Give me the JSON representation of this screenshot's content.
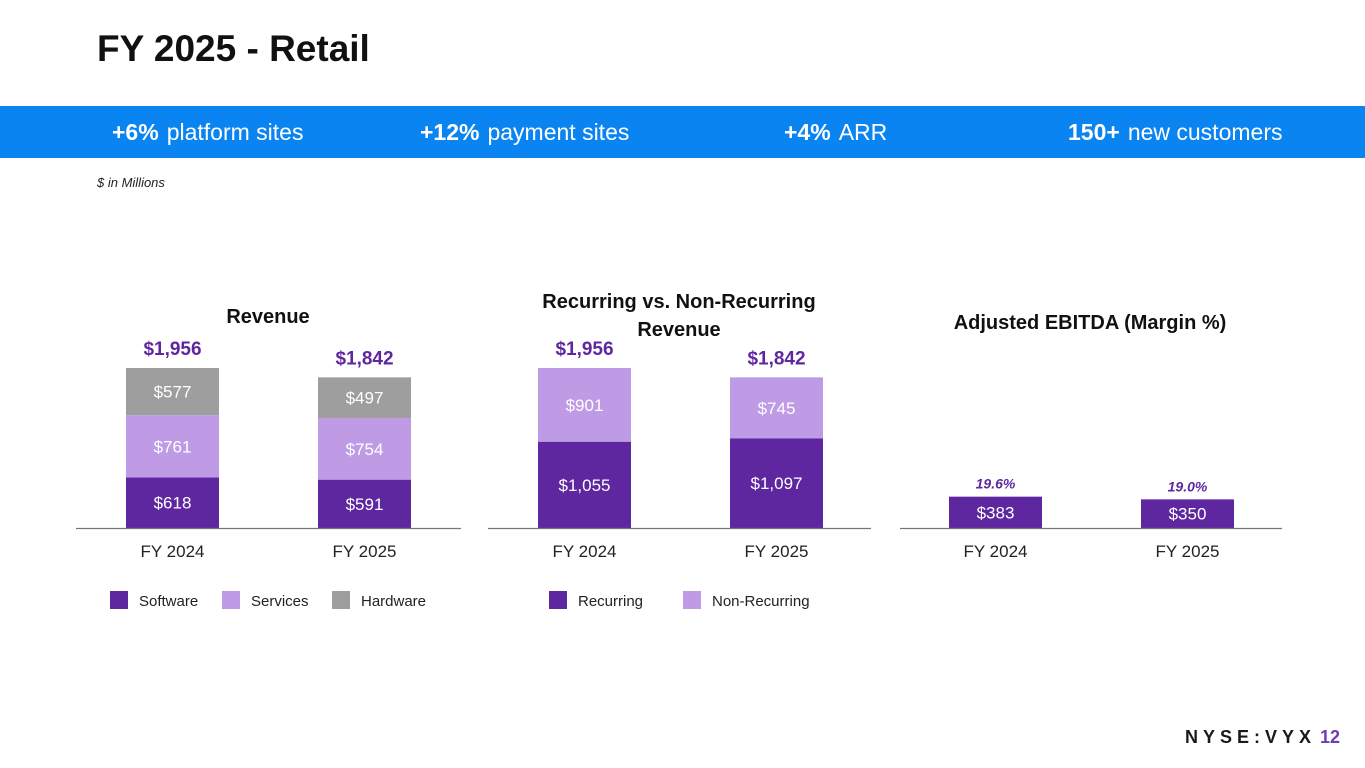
{
  "slide": {
    "title": "FY 2025 - Retail",
    "unit_note": "$ in Millions",
    "page_number": "12",
    "logo_text": "NYSE:VYX"
  },
  "banner": {
    "items": [
      {
        "value": "+6%",
        "label": "platform sites"
      },
      {
        "value": "+12%",
        "label": "payment sites"
      },
      {
        "value": "+4%",
        "label": "ARR"
      },
      {
        "value": "150+",
        "label": "new customers"
      }
    ]
  },
  "colors": {
    "banner": "#0a84f0",
    "dark_purple": "#5e27a0",
    "light_purple": "#bf9be6",
    "gray": "#9e9e9e",
    "total_label": "#5e27a0"
  },
  "chart_data": [
    {
      "type": "bar",
      "stacked": true,
      "title": "Revenue",
      "categories": [
        "FY 2024",
        "FY 2025"
      ],
      "series": [
        {
          "name": "Software",
          "values": [
            618,
            591
          ],
          "labels": [
            "$618",
            "$591"
          ],
          "color": "#5e27a0",
          "label_color": "#ffffff"
        },
        {
          "name": "Services",
          "values": [
            761,
            754
          ],
          "labels": [
            "$761",
            "$754"
          ],
          "color": "#bf9be6",
          "label_color": "#ffffff"
        },
        {
          "name": "Hardware",
          "values": [
            577,
            497
          ],
          "labels": [
            "$577",
            "$497"
          ],
          "color": "#9e9e9e",
          "label_color": "#ffffff"
        }
      ],
      "totals": [
        "$1,956",
        "$1,842"
      ],
      "legend": "bottom"
    },
    {
      "type": "bar",
      "stacked": true,
      "title": "Recurring vs. Non-Recurring Revenue",
      "categories": [
        "FY 2024",
        "FY 2025"
      ],
      "series": [
        {
          "name": "Recurring",
          "values": [
            1055,
            1097
          ],
          "labels": [
            "$1,055",
            "$1,097"
          ],
          "color": "#5e27a0",
          "label_color": "#ffffff"
        },
        {
          "name": "Non-Recurring",
          "values": [
            901,
            745
          ],
          "labels": [
            "$901",
            "$745"
          ],
          "color": "#bf9be6",
          "label_color": "#ffffff"
        }
      ],
      "totals": [
        "$1,956",
        "$1,842"
      ],
      "legend": "bottom"
    },
    {
      "type": "bar",
      "stacked": false,
      "title": "Adjusted EBITDA (Margin %)",
      "categories": [
        "FY 2024",
        "FY 2025"
      ],
      "series": [
        {
          "values": [
            383,
            350
          ],
          "labels": [
            "$383",
            "$350"
          ],
          "color": "#5e27a0",
          "label_color": "#ffffff"
        }
      ],
      "annotations": [
        "19.6%",
        "19.0%"
      ]
    }
  ]
}
